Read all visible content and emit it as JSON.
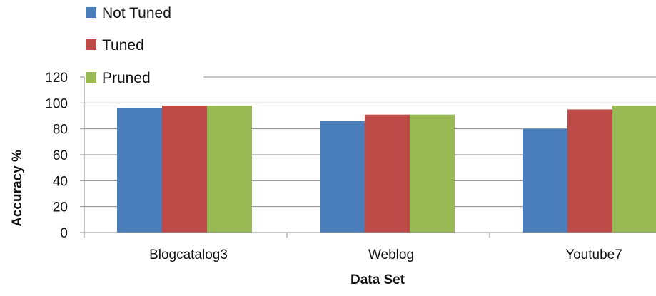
{
  "chart_data": {
    "type": "bar",
    "categories": [
      "Blogcatalog3",
      "Weblog",
      "Youtube7"
    ],
    "series": [
      {
        "name": "Not Tuned",
        "values": [
          96,
          86,
          80
        ],
        "color": "#4a7ebb"
      },
      {
        "name": "Tuned",
        "values": [
          98,
          91,
          95
        ],
        "color": "#be4b48"
      },
      {
        "name": "Pruned",
        "values": [
          98,
          91,
          98
        ],
        "color": "#98b954"
      }
    ],
    "xlabel": "Data Set",
    "ylabel": "Accuracy %",
    "ylim": [
      0,
      120
    ],
    "yticks": [
      "0",
      "20",
      "40",
      "60",
      "80",
      "100",
      "120"
    ],
    "grid": true,
    "legend_position": "top-left"
  }
}
